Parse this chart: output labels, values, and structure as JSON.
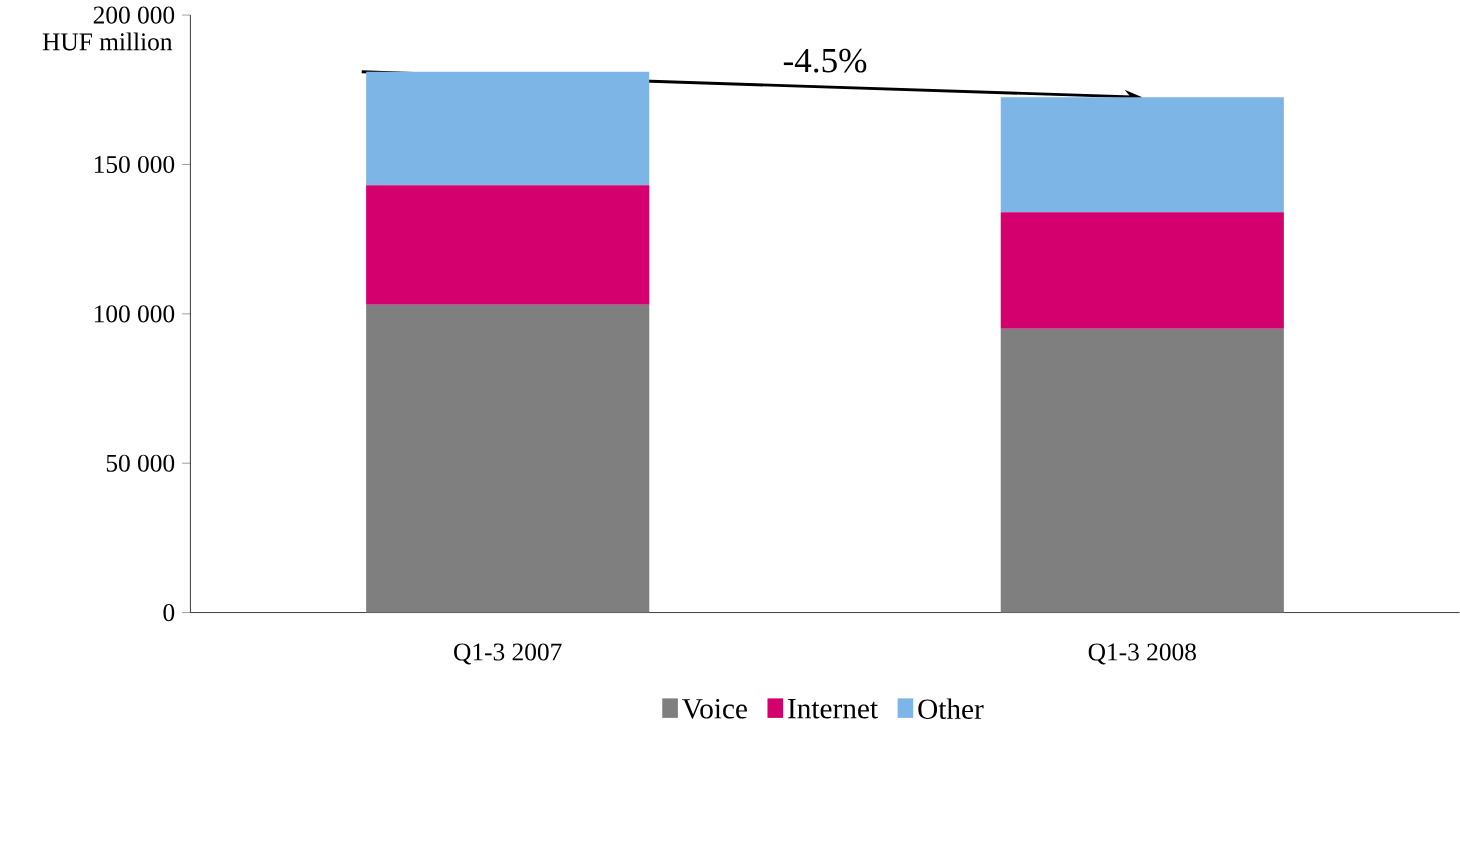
{
  "chart_data": {
    "type": "bar",
    "stacked": true,
    "ylabel": "HUF million",
    "categories": [
      "Q1-3 2007",
      "Q1-3 2008"
    ],
    "series": [
      {
        "name": "Voice",
        "color": "#7f7f7f",
        "values": [
          103000,
          95000
        ]
      },
      {
        "name": "Internet",
        "color": "#d4006e",
        "values": [
          40000,
          39000
        ]
      },
      {
        "name": "Other",
        "color": "#7db6e6",
        "values": [
          38000,
          38500
        ]
      }
    ],
    "ylim": [
      0,
      200000
    ],
    "yticks": [
      {
        "value": 0,
        "label": "0"
      },
      {
        "value": 50000,
        "label": "50 000"
      },
      {
        "value": 100000,
        "label": "100 000"
      },
      {
        "value": 150000,
        "label": "150 000"
      },
      {
        "value": 200000,
        "label": "200 000"
      }
    ],
    "annotations": [
      "-4.5%"
    ],
    "legend": "bottom"
  }
}
